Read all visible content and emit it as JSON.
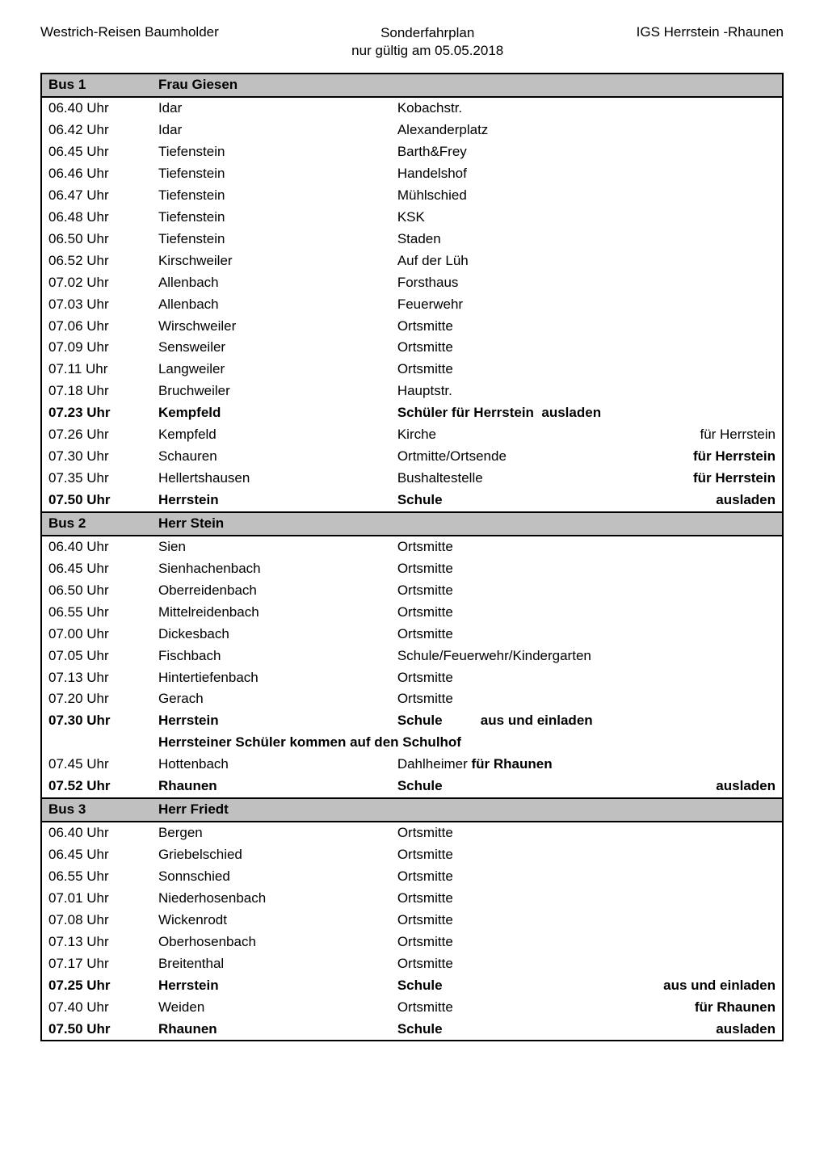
{
  "header": {
    "left": "Westrich-Reisen Baumholder",
    "center_line1": "Sonderfahrplan",
    "center_line2": "nur gültig am 05.05.2018",
    "right": "IGS  Herrstein -Rhaunen"
  },
  "buses": [
    {
      "bus_label": "Bus 1",
      "driver": "Frau Giesen",
      "rows": [
        {
          "time": "06.40 Uhr",
          "place": "Idar",
          "stop": "Kobachstr.",
          "note": "",
          "bold": false
        },
        {
          "time": "06.42 Uhr",
          "place": "Idar",
          "stop": "Alexanderplatz",
          "note": "",
          "bold": false
        },
        {
          "time": "06.45 Uhr",
          "place": "Tiefenstein",
          "stop": "Barth&Frey",
          "note": "",
          "bold": false
        },
        {
          "time": "06.46 Uhr",
          "place": "Tiefenstein",
          "stop": "Handelshof",
          "note": "",
          "bold": false
        },
        {
          "time": "06.47 Uhr",
          "place": "Tiefenstein",
          "stop": "Mühlschied",
          "note": "",
          "bold": false
        },
        {
          "time": "06.48 Uhr",
          "place": "Tiefenstein",
          "stop": "KSK",
          "note": "",
          "bold": false
        },
        {
          "time": "06.50 Uhr",
          "place": "Tiefenstein",
          "stop": "Staden",
          "note": "",
          "bold": false
        },
        {
          "time": "06.52 Uhr",
          "place": "Kirschweiler",
          "stop": "Auf der Lüh",
          "note": "",
          "bold": false
        },
        {
          "time": "07.02 Uhr",
          "place": "Allenbach",
          "stop": "Forsthaus",
          "note": "",
          "bold": false
        },
        {
          "time": "07.03 Uhr",
          "place": "Allenbach",
          "stop": "Feuerwehr",
          "note": "",
          "bold": false
        },
        {
          "time": "07.06 Uhr",
          "place": "Wirschweiler",
          "stop": "Ortsmitte",
          "note": "",
          "bold": false
        },
        {
          "time": "07.09 Uhr",
          "place": "Sensweiler",
          "stop": "Ortsmitte",
          "note": "",
          "bold": false
        },
        {
          "time": "07.11 Uhr",
          "place": "Langweiler",
          "stop": "Ortsmitte",
          "note": "",
          "bold": false
        },
        {
          "time": "07.18 Uhr",
          "place": "Bruchweiler",
          "stop": "Hauptstr.",
          "note": "",
          "bold": false
        },
        {
          "time": "07.23 Uhr",
          "place": "Kempfeld",
          "stop": "Schüler für Herrstein  ausladen",
          "note": "",
          "bold": true
        },
        {
          "time": "07.26 Uhr",
          "place": "Kempfeld",
          "stop": "Kirche",
          "note": "für Herrstein",
          "bold": false
        },
        {
          "time": "07.30 Uhr",
          "place": "Schauren",
          "stop": "Ortmitte/Ortsende",
          "note": "für Herrstein",
          "bold": false,
          "note_bold": true
        },
        {
          "time": "07.35 Uhr",
          "place": "Hellertshausen",
          "stop": "Bushaltestelle",
          "note": "für Herrstein",
          "bold": false,
          "note_bold": true
        },
        {
          "time": "07.50 Uhr",
          "place": "Herrstein",
          "stop": "Schule",
          "note": "ausladen",
          "bold": true
        }
      ]
    },
    {
      "bus_label": "Bus 2",
      "driver": "Herr Stein",
      "rows": [
        {
          "time": "06.40 Uhr",
          "place": "Sien",
          "stop": "Ortsmitte",
          "note": "",
          "bold": false
        },
        {
          "time": "06.45 Uhr",
          "place": "Sienhachenbach",
          "stop": "Ortsmitte",
          "note": "",
          "bold": false
        },
        {
          "time": "06.50 Uhr",
          "place": "Oberreidenbach",
          "stop": "Ortsmitte",
          "note": "",
          "bold": false
        },
        {
          "time": "06.55 Uhr",
          "place": "Mittelreidenbach",
          "stop": "Ortsmitte",
          "note": "",
          "bold": false
        },
        {
          "time": "07.00 Uhr",
          "place": "Dickesbach",
          "stop": "Ortsmitte",
          "note": "",
          "bold": false
        },
        {
          "time": "07.05 Uhr",
          "place": "Fischbach",
          "stop": "Schule/Feuerwehr/Kindergarten",
          "note": "",
          "bold": false
        },
        {
          "time": "07.13  Uhr",
          "place": "Hintertiefenbach",
          "stop": "Ortsmitte",
          "note": "",
          "bold": false
        },
        {
          "time": "07.20 Uhr",
          "place": "Gerach",
          "stop": "Ortsmitte",
          "note": "",
          "bold": false
        },
        {
          "time": "07.30 Uhr",
          "place": "Herrstein",
          "stop": "Schule          aus und einladen",
          "note": "",
          "bold": true
        },
        {
          "time": "",
          "place": "Herrsteiner Schüler kommen auf den Schulhof",
          "stop": "",
          "note": "",
          "bold": true,
          "span": true
        },
        {
          "time": "07.45 Uhr",
          "place": "Hottenbach",
          "stop": "Dahlheimer     für Rhaunen",
          "note": "",
          "bold": false,
          "stop_bold_suffix": "für Rhaunen"
        },
        {
          "time": "07.52 Uhr",
          "place": "Rhaunen",
          "stop": "Schule",
          "note": "ausladen",
          "bold": true
        }
      ]
    },
    {
      "bus_label": "Bus 3",
      "driver": "Herr Friedt",
      "rows": [
        {
          "time": "06.40 Uhr",
          "place": "Bergen",
          "stop": "Ortsmitte",
          "note": "",
          "bold": false
        },
        {
          "time": "06.45 Uhr",
          "place": "Griebelschied",
          "stop": "Ortsmitte",
          "note": "",
          "bold": false
        },
        {
          "time": "06.55 Uhr",
          "place": "Sonnschied",
          "stop": "Ortsmitte",
          "note": "",
          "bold": false
        },
        {
          "time": "07.01 Uhr",
          "place": "Niederhosenbach",
          "stop": "Ortsmitte",
          "note": "",
          "bold": false
        },
        {
          "time": "07.08 Uhr",
          "place": "Wickenrodt",
          "stop": "Ortsmitte",
          "note": "",
          "bold": false
        },
        {
          "time": "07.13 Uhr",
          "place": "Oberhosenbach",
          "stop": "Ortsmitte",
          "note": "",
          "bold": false
        },
        {
          "time": "07.17 Uhr",
          "place": "Breitenthal",
          "stop": "Ortsmitte",
          "note": "",
          "bold": false
        },
        {
          "time": "07.25 Uhr",
          "place": "Herrstein",
          "stop": "Schule",
          "note": "aus und einladen",
          "bold": true
        },
        {
          "time": "07.40 Uhr",
          "place": "Weiden",
          "stop": "Ortsmitte",
          "note": "für Rhaunen",
          "bold": false,
          "note_bold": true
        },
        {
          "time": "07.50 Uhr",
          "place": "Rhaunen",
          "stop": "Schule",
          "note": "ausladen",
          "bold": true
        }
      ]
    }
  ],
  "colors": {
    "header_bg": "#c0c0c0",
    "border": "#000000",
    "text": "#000000",
    "page_bg": "#ffffff"
  }
}
